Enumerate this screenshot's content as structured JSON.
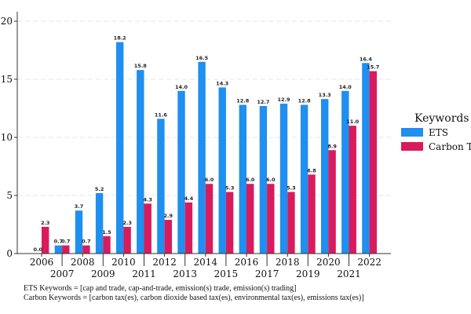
{
  "chart_data": {
    "type": "bar",
    "categories": [
      "2006",
      "2007",
      "2008",
      "2009",
      "2010",
      "2011",
      "2012",
      "2013",
      "2014",
      "2015",
      "2016",
      "2017",
      "2018",
      "2019",
      "2020",
      "2021",
      "2022"
    ],
    "series": [
      {
        "name": "ETS",
        "color": "#1f8ff0",
        "values": [
          0.0,
          0.7,
          3.7,
          5.2,
          18.2,
          15.8,
          11.6,
          14.0,
          16.5,
          14.3,
          12.8,
          12.7,
          12.9,
          12.8,
          13.3,
          14.0,
          16.4
        ],
        "labels": [
          "0.0",
          "0.7",
          "3.7",
          "5.2",
          "18.2",
          "15.8",
          "11.6",
          "14.0",
          "16.5",
          "14.3",
          "12.8",
          "12.7",
          "12.9",
          "12.8",
          "13.3",
          "14.0",
          "16.4"
        ]
      },
      {
        "name": "Carbon Tax",
        "color": "#d81b5c",
        "values": [
          2.3,
          0.7,
          0.7,
          1.5,
          2.3,
          4.3,
          2.9,
          4.4,
          6.0,
          5.3,
          6.0,
          6.0,
          5.3,
          6.8,
          8.9,
          11.0,
          15.7
        ],
        "labels": [
          "2.3",
          "0.7",
          "0.7",
          "1.5",
          "2.3",
          "4.3",
          "2.9",
          "4.4",
          "6.0",
          "5.3",
          "6.0",
          "6.0",
          "5.3",
          "6.8",
          "8.9",
          "11.0",
          "15.7"
        ]
      }
    ],
    "ylim": [
      0,
      20
    ],
    "yticks": [
      0,
      5,
      10,
      15,
      20
    ],
    "grid": true,
    "legend_title": "Keywords",
    "legend_position": "right",
    "xlabel": "",
    "ylabel": ""
  },
  "footnotes": {
    "ets": "ETS Keywords = [cap and trade, cap-and-trade, emission(s) trade, emission(s) trading]",
    "carbon": "Carbon Keywords = [carbon tax(es), carbon dioxide based tax(es), environmental tax(es), emissions tax(es)]"
  }
}
